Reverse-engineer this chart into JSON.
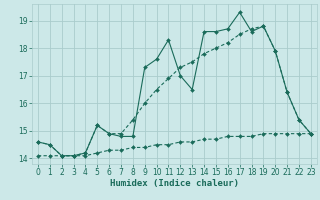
{
  "xlabel": "Humidex (Indice chaleur)",
  "background_color": "#cce8e8",
  "grid_color": "#aacccc",
  "line_color": "#1a6b5a",
  "xlim": [
    -0.5,
    23.5
  ],
  "ylim": [
    13.8,
    19.6
  ],
  "yticks": [
    14,
    15,
    16,
    17,
    18,
    19
  ],
  "xticks": [
    0,
    1,
    2,
    3,
    4,
    5,
    6,
    7,
    8,
    9,
    10,
    11,
    12,
    13,
    14,
    15,
    16,
    17,
    18,
    19,
    20,
    21,
    22,
    23
  ],
  "series1_x": [
    0,
    1,
    2,
    3,
    4,
    5,
    6,
    7,
    8,
    9,
    10,
    11,
    12,
    13,
    14,
    15,
    16,
    17,
    18,
    19,
    20,
    21,
    22,
    23
  ],
  "series1_y": [
    14.6,
    14.5,
    14.1,
    14.1,
    14.2,
    15.2,
    14.9,
    14.8,
    14.8,
    17.3,
    17.6,
    18.3,
    17.0,
    16.5,
    18.6,
    18.6,
    18.7,
    19.3,
    18.6,
    18.8,
    17.9,
    16.4,
    15.4,
    14.9
  ],
  "series2_x": [
    0,
    1,
    2,
    3,
    4,
    5,
    6,
    7,
    8,
    9,
    10,
    11,
    12,
    13,
    14,
    15,
    16,
    17,
    18,
    19,
    20,
    21,
    22,
    23
  ],
  "series2_y": [
    14.6,
    14.5,
    14.1,
    14.1,
    14.2,
    15.2,
    14.9,
    14.9,
    15.4,
    16.0,
    16.5,
    16.9,
    17.3,
    17.5,
    17.8,
    18.0,
    18.2,
    18.5,
    18.7,
    18.8,
    17.9,
    16.4,
    15.4,
    14.9
  ],
  "series3_x": [
    0,
    1,
    2,
    3,
    4,
    5,
    6,
    7,
    8,
    9,
    10,
    11,
    12,
    13,
    14,
    15,
    16,
    17,
    18,
    19,
    20,
    21,
    22,
    23
  ],
  "series3_y": [
    14.1,
    14.1,
    14.1,
    14.1,
    14.1,
    14.2,
    14.3,
    14.3,
    14.4,
    14.4,
    14.5,
    14.5,
    14.6,
    14.6,
    14.7,
    14.7,
    14.8,
    14.8,
    14.8,
    14.9,
    14.9,
    14.9,
    14.9,
    14.9
  ],
  "xlabel_fontsize": 6.5,
  "tick_fontsize": 5.5
}
